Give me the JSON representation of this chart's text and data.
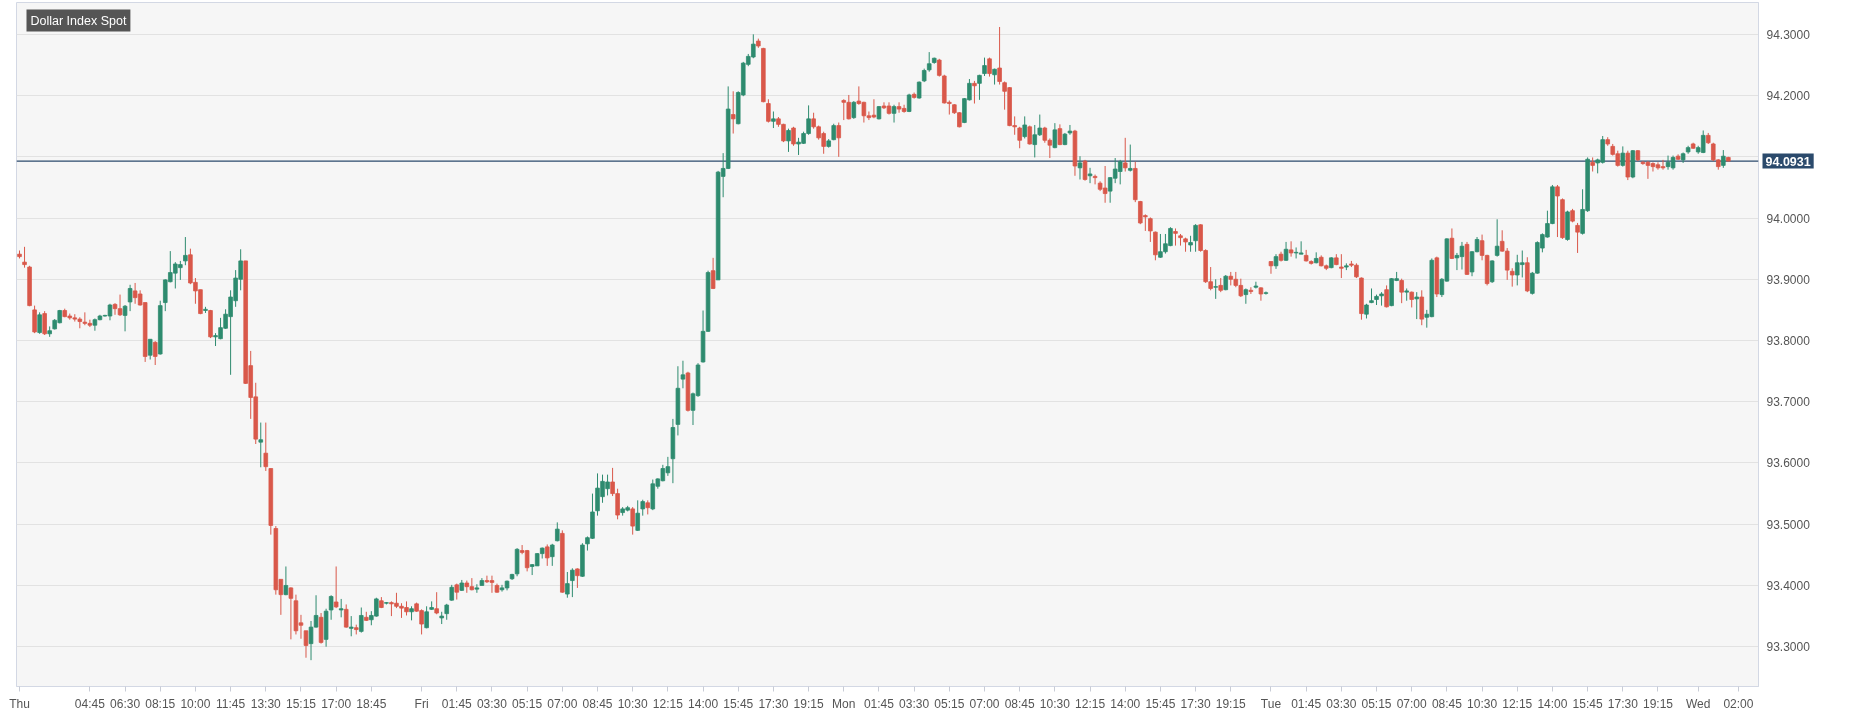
{
  "chart_data": {
    "type": "candlestick",
    "title": "Dollar Index Spot",
    "categories": [
      "Thu",
      null,
      null,
      null,
      null,
      null,
      null,
      null,
      null,
      null,
      null,
      null,
      null,
      null,
      "04:45",
      null,
      null,
      null,
      null,
      null,
      null,
      "06:30",
      null,
      null,
      null,
      null,
      null,
      null,
      "08:15",
      null,
      null,
      null,
      null,
      null,
      null,
      "10:00",
      null,
      null,
      null,
      null,
      null,
      null,
      "11:45",
      null,
      null,
      null,
      null,
      null,
      null,
      "13:30",
      null,
      null,
      null,
      null,
      null,
      null,
      "15:15",
      null,
      null,
      null,
      null,
      null,
      null,
      "17:00",
      null,
      null,
      null,
      null,
      null,
      null,
      "18:45",
      null,
      null,
      null,
      null,
      null,
      null,
      null,
      null,
      null,
      "Fri",
      null,
      null,
      null,
      null,
      null,
      null,
      "01:45",
      null,
      null,
      null,
      null,
      null,
      null,
      "03:30",
      null,
      null,
      null,
      null,
      null,
      null,
      "05:15",
      null,
      null,
      null,
      null,
      null,
      null,
      "07:00",
      null,
      null,
      null,
      null,
      null,
      null,
      "08:45",
      null,
      null,
      null,
      null,
      null,
      null,
      "10:30",
      null,
      null,
      null,
      null,
      null,
      null,
      "12:15",
      null,
      null,
      null,
      null,
      null,
      null,
      "14:00",
      null,
      null,
      null,
      null,
      null,
      null,
      "15:45",
      null,
      null,
      null,
      null,
      null,
      null,
      "17:30",
      null,
      null,
      null,
      null,
      null,
      null,
      "19:15",
      null,
      null,
      null,
      null,
      null,
      null,
      "Mon",
      null,
      null,
      null,
      null,
      null,
      null,
      "01:45",
      null,
      null,
      null,
      null,
      null,
      null,
      "03:30",
      null,
      null,
      null,
      null,
      null,
      null,
      "05:15",
      null,
      null,
      null,
      null,
      null,
      null,
      "07:00",
      null,
      null,
      null,
      null,
      null,
      null,
      "08:45",
      null,
      null,
      null,
      null,
      null,
      null,
      "10:30",
      null,
      null,
      null,
      null,
      null,
      null,
      "12:15",
      null,
      null,
      null,
      null,
      null,
      null,
      "14:00",
      null,
      null,
      null,
      null,
      null,
      null,
      "15:45",
      null,
      null,
      null,
      null,
      null,
      null,
      "17:30",
      null,
      null,
      null,
      null,
      null,
      null,
      "19:15",
      null,
      null,
      null,
      null,
      null,
      null,
      null,
      "Tue",
      null,
      null,
      null,
      null,
      null,
      null,
      "01:45",
      null,
      null,
      null,
      null,
      null,
      null,
      "03:30",
      null,
      null,
      null,
      null,
      null,
      null,
      "05:15",
      null,
      null,
      null,
      null,
      null,
      null,
      "07:00",
      null,
      null,
      null,
      null,
      null,
      null,
      "08:45",
      null,
      null,
      null,
      null,
      null,
      null,
      "10:30",
      null,
      null,
      null,
      null,
      null,
      null,
      "12:15",
      null,
      null,
      null,
      null,
      null,
      null,
      "14:00",
      null,
      null,
      null,
      null,
      null,
      null,
      "15:45",
      null,
      null,
      null,
      null,
      null,
      null,
      "17:30",
      null,
      null,
      null,
      null,
      null,
      null,
      "19:15",
      null,
      null,
      null,
      null,
      null,
      null,
      null,
      "Wed",
      null,
      null,
      null,
      null,
      null,
      null,
      null,
      "02:00"
    ],
    "ohlc": [
      [
        93.941,
        93.947,
        93.934,
        93.937
      ],
      [
        93.928,
        93.953,
        93.919,
        93.924
      ],
      [
        93.92,
        93.922,
        93.856,
        93.857
      ],
      [
        93.85,
        93.857,
        93.812,
        93.814
      ],
      [
        93.813,
        93.846,
        93.811,
        93.842
      ],
      [
        93.844,
        93.848,
        93.809,
        93.811
      ],
      [
        93.811,
        93.823,
        93.806,
        93.816
      ],
      [
        93.819,
        93.835,
        93.818,
        93.833
      ],
      [
        93.829,
        93.85,
        93.828,
        93.849
      ],
      [
        93.849,
        93.852,
        93.838,
        93.839
      ],
      [
        93.84,
        93.844,
        93.834,
        93.837
      ],
      [
        93.837,
        93.843,
        93.831,
        93.835
      ],
      [
        93.835,
        93.838,
        93.82,
        93.831
      ],
      [
        93.83,
        93.846,
        93.825,
        93.828
      ],
      [
        93.828,
        93.834,
        93.822,
        93.825
      ],
      [
        93.825,
        93.836,
        93.816,
        93.834
      ],
      [
        93.834,
        93.842,
        93.833,
        93.84
      ],
      [
        93.84,
        93.842,
        93.839,
        93.841
      ],
      [
        93.84,
        93.86,
        93.833,
        93.858
      ],
      [
        93.859,
        93.861,
        93.842,
        93.852
      ],
      [
        93.852,
        93.875,
        93.84,
        93.842
      ],
      [
        93.841,
        93.858,
        93.815,
        93.856
      ],
      [
        93.863,
        93.891,
        93.848,
        93.885
      ],
      [
        93.881,
        93.894,
        93.86,
        93.87
      ],
      [
        93.876,
        93.882,
        93.857,
        93.858
      ],
      [
        93.862,
        93.862,
        93.765,
        93.774
      ],
      [
        93.776,
        93.802,
        93.769,
        93.802
      ],
      [
        93.797,
        93.799,
        93.76,
        93.774
      ],
      [
        93.778,
        93.865,
        93.777,
        93.857
      ],
      [
        93.862,
        93.9,
        93.848,
        93.899
      ],
      [
        93.896,
        93.946,
        93.895,
        93.911
      ],
      [
        93.91,
        93.928,
        93.885,
        93.925
      ],
      [
        93.919,
        93.93,
        93.899,
        93.924
      ],
      [
        93.93,
        93.969,
        93.923,
        93.939
      ],
      [
        93.94,
        93.95,
        93.892,
        93.894
      ],
      [
        93.895,
        93.902,
        93.86,
        93.881
      ],
      [
        93.883,
        93.883,
        93.843,
        93.844
      ],
      [
        93.849,
        93.855,
        93.845,
        93.851
      ],
      [
        93.849,
        93.85,
        93.804,
        93.806
      ],
      [
        93.806,
        93.812,
        93.791,
        93.808
      ],
      [
        93.803,
        93.837,
        93.802,
        93.821
      ],
      [
        93.82,
        93.851,
        93.819,
        93.843
      ],
      [
        93.839,
        93.882,
        93.744,
        93.871
      ],
      [
        93.865,
        93.915,
        93.855,
        93.902
      ],
      [
        93.9,
        93.949,
        93.882,
        93.93
      ],
      [
        93.93,
        93.93,
        93.729,
        93.73
      ],
      [
        93.759,
        93.783,
        93.672,
        93.707
      ],
      [
        93.708,
        93.731,
        93.631,
        93.639
      ],
      [
        93.634,
        93.666,
        93.593,
        93.638
      ],
      [
        93.616,
        93.666,
        93.587,
        93.594
      ],
      [
        93.591,
        93.591,
        93.483,
        93.498
      ],
      [
        93.493,
        93.497,
        93.385,
        93.393
      ],
      [
        93.41,
        93.41,
        93.352,
        93.385
      ],
      [
        93.385,
        93.431,
        93.384,
        93.4
      ],
      [
        93.396,
        93.397,
        93.312,
        93.379
      ],
      [
        93.375,
        93.385,
        93.32,
        93.326
      ],
      [
        93.339,
        93.352,
        93.313,
        93.335
      ],
      [
        93.326,
        93.326,
        93.282,
        93.302
      ],
      [
        93.305,
        93.342,
        93.278,
        93.332
      ],
      [
        93.332,
        93.384,
        93.331,
        93.351
      ],
      [
        93.348,
        93.355,
        93.305,
        93.307
      ],
      [
        93.312,
        93.362,
        93.3,
        93.358
      ],
      [
        93.36,
        93.384,
        93.344,
        93.382
      ],
      [
        93.373,
        93.431,
        93.363,
        93.365
      ],
      [
        93.36,
        93.378,
        93.348,
        93.362
      ],
      [
        93.361,
        93.369,
        93.331,
        93.332
      ],
      [
        93.33,
        93.35,
        93.317,
        93.332
      ],
      [
        93.331,
        93.336,
        93.32,
        93.328
      ],
      [
        93.325,
        93.364,
        93.323,
        93.351
      ],
      [
        93.348,
        93.357,
        93.342,
        93.343
      ],
      [
        93.344,
        93.358,
        93.335,
        93.351
      ],
      [
        93.35,
        93.38,
        93.349,
        93.378
      ],
      [
        93.375,
        93.381,
        93.363,
        93.364
      ],
      [
        93.371,
        93.373,
        93.369,
        93.372
      ],
      [
        93.372,
        93.374,
        93.35,
        93.37
      ],
      [
        93.371,
        93.388,
        93.363,
        93.366
      ],
      [
        93.366,
        93.371,
        93.347,
        93.363
      ],
      [
        93.364,
        93.374,
        93.351,
        93.357
      ],
      [
        93.357,
        93.366,
        93.343,
        93.362
      ],
      [
        93.37,
        93.372,
        93.357,
        93.358
      ],
      [
        93.359,
        93.361,
        93.32,
        93.337
      ],
      [
        93.331,
        93.366,
        93.33,
        93.357
      ],
      [
        93.361,
        93.374,
        93.36,
        93.364
      ],
      [
        93.362,
        93.389,
        93.353,
        93.355
      ],
      [
        93.347,
        93.357,
        93.337,
        93.35
      ],
      [
        93.354,
        93.37,
        93.344,
        93.368
      ],
      [
        93.376,
        93.401,
        93.375,
        93.397
      ],
      [
        93.401,
        93.403,
        93.377,
        93.389
      ],
      [
        93.392,
        93.409,
        93.391,
        93.404
      ],
      [
        93.404,
        93.408,
        93.388,
        93.398
      ],
      [
        93.398,
        93.412,
        93.392,
        93.393
      ],
      [
        93.394,
        93.402,
        93.388,
        93.396
      ],
      [
        93.4,
        93.412,
        93.4,
        93.408
      ],
      [
        93.408,
        93.416,
        93.404,
        93.406
      ],
      [
        93.408,
        93.416,
        93.388,
        93.405
      ],
      [
        93.4,
        93.403,
        93.388,
        93.389
      ],
      [
        93.393,
        93.401,
        93.39,
        93.396
      ],
      [
        93.396,
        93.408,
        93.392,
        93.407
      ],
      [
        93.411,
        93.419,
        93.409,
        93.418
      ],
      [
        93.419,
        93.461,
        93.415,
        93.459
      ],
      [
        93.457,
        93.466,
        93.451,
        93.454
      ],
      [
        93.457,
        93.458,
        93.423,
        93.429
      ],
      [
        93.431,
        93.435,
        93.417,
        93.434
      ],
      [
        93.432,
        93.453,
        93.432,
        93.452
      ],
      [
        93.452,
        93.462,
        93.444,
        93.461
      ],
      [
        93.463,
        93.467,
        93.432,
        93.445
      ],
      [
        93.447,
        93.468,
        93.432,
        93.466
      ],
      [
        93.473,
        93.503,
        93.472,
        93.492
      ],
      [
        93.485,
        93.49,
        93.388,
        93.389
      ],
      [
        93.386,
        93.422,
        93.38,
        93.403
      ],
      [
        93.408,
        93.428,
        93.381,
        93.425
      ],
      [
        93.427,
        93.428,
        93.396,
        93.416
      ],
      [
        93.415,
        93.469,
        93.414,
        93.466
      ],
      [
        93.468,
        93.48,
        93.457,
        93.478
      ],
      [
        93.477,
        93.55,
        93.476,
        93.52
      ],
      [
        93.522,
        93.583,
        93.514,
        93.559
      ],
      [
        93.545,
        93.581,
        93.535,
        93.57
      ],
      [
        93.558,
        93.581,
        93.547,
        93.569
      ],
      [
        93.569,
        93.592,
        93.546,
        93.55
      ],
      [
        93.55,
        93.558,
        93.508,
        93.515
      ],
      [
        93.519,
        93.528,
        93.514,
        93.525
      ],
      [
        93.523,
        93.53,
        93.521,
        93.527
      ],
      [
        93.525,
        93.528,
        93.483,
        93.497
      ],
      [
        93.49,
        93.539,
        93.489,
        93.518
      ],
      [
        93.525,
        93.54,
        93.514,
        93.537
      ],
      [
        93.535,
        93.539,
        93.516,
        93.527
      ],
      [
        93.525,
        93.573,
        93.523,
        93.566
      ],
      [
        93.562,
        93.575,
        93.558,
        93.574
      ],
      [
        93.571,
        93.597,
        93.57,
        93.591
      ],
      [
        93.584,
        93.61,
        93.579,
        93.594
      ],
      [
        93.607,
        93.672,
        93.567,
        93.658
      ],
      [
        93.663,
        93.758,
        93.645,
        93.722
      ],
      [
        93.737,
        93.767,
        93.722,
        93.744
      ],
      [
        93.747,
        93.749,
        93.684,
        93.686
      ],
      [
        93.686,
        93.715,
        93.662,
        93.713
      ],
      [
        93.71,
        93.763,
        93.708,
        93.76
      ],
      [
        93.765,
        93.849,
        93.764,
        93.815
      ],
      [
        93.815,
        93.914,
        93.814,
        93.911
      ],
      [
        93.914,
        93.935,
        93.884,
        93.885
      ],
      [
        93.899,
        94.077,
        93.899,
        94.075
      ],
      [
        94.068,
        94.106,
        94.034,
        94.081
      ],
      [
        94.081,
        94.215,
        94.08,
        94.178
      ],
      [
        94.169,
        94.207,
        94.138,
        94.162
      ],
      [
        94.154,
        94.207,
        94.153,
        94.205
      ],
      [
        94.201,
        94.255,
        94.199,
        94.253
      ],
      [
        94.251,
        94.268,
        94.248,
        94.264
      ],
      [
        94.263,
        94.3,
        94.261,
        94.284
      ],
      [
        94.289,
        94.293,
        94.278,
        94.281
      ],
      [
        94.277,
        94.278,
        94.189,
        94.19
      ],
      [
        94.187,
        94.194,
        94.156,
        94.158
      ],
      [
        94.158,
        94.174,
        94.147,
        94.162
      ],
      [
        94.162,
        94.165,
        94.149,
        94.153
      ],
      [
        94.153,
        94.154,
        94.124,
        94.126
      ],
      [
        94.126,
        94.146,
        94.108,
        94.143
      ],
      [
        94.147,
        94.149,
        94.118,
        94.121
      ],
      [
        94.121,
        94.131,
        94.103,
        94.124
      ],
      [
        94.122,
        94.141,
        94.121,
        94.138
      ],
      [
        94.138,
        94.184,
        94.136,
        94.162
      ],
      [
        94.162,
        94.172,
        94.146,
        94.149
      ],
      [
        94.149,
        94.151,
        94.128,
        94.131
      ],
      [
        94.138,
        94.141,
        94.105,
        94.117
      ],
      [
        94.117,
        94.129,
        94.115,
        94.126
      ],
      [
        94.128,
        94.154,
        94.127,
        94.151
      ],
      [
        94.151,
        94.156,
        94.1,
        94.131
      ],
      [
        94.192,
        94.194,
        94.16,
        94.189
      ],
      [
        94.189,
        94.201,
        94.161,
        94.162
      ],
      [
        94.164,
        94.191,
        94.162,
        94.189
      ],
      [
        94.191,
        94.215,
        94.185,
        94.187
      ],
      [
        94.189,
        94.19,
        94.156,
        94.167
      ],
      [
        94.167,
        94.174,
        94.16,
        94.164
      ],
      [
        94.168,
        94.194,
        94.163,
        94.165
      ],
      [
        94.162,
        94.183,
        94.161,
        94.182
      ],
      [
        94.183,
        94.189,
        94.178,
        94.18
      ],
      [
        94.183,
        94.189,
        94.169,
        94.171
      ],
      [
        94.171,
        94.185,
        94.156,
        94.182
      ],
      [
        94.182,
        94.189,
        94.172,
        94.178
      ],
      [
        94.179,
        94.185,
        94.172,
        94.174
      ],
      [
        94.174,
        94.203,
        94.173,
        94.201
      ],
      [
        94.202,
        94.205,
        94.195,
        94.197
      ],
      [
        94.196,
        94.223,
        94.195,
        94.222
      ],
      [
        94.224,
        94.244,
        94.222,
        94.241
      ],
      [
        94.242,
        94.271,
        94.239,
        94.252
      ],
      [
        94.254,
        94.262,
        94.252,
        94.261
      ],
      [
        94.258,
        94.26,
        94.231,
        94.233
      ],
      [
        94.232,
        94.234,
        94.187,
        94.188
      ],
      [
        94.189,
        94.192,
        94.169,
        94.187
      ],
      [
        94.185,
        94.186,
        94.17,
        94.172
      ],
      [
        94.172,
        94.173,
        94.148,
        94.149
      ],
      [
        94.156,
        94.196,
        94.155,
        94.195
      ],
      [
        94.193,
        94.227,
        94.192,
        94.22
      ],
      [
        94.22,
        94.224,
        94.187,
        94.216
      ],
      [
        94.22,
        94.234,
        94.193,
        94.233
      ],
      [
        94.236,
        94.262,
        94.232,
        94.249
      ],
      [
        94.26,
        94.262,
        94.231,
        94.236
      ],
      [
        94.234,
        94.244,
        94.218,
        94.243
      ],
      [
        94.245,
        94.312,
        94.218,
        94.223
      ],
      [
        94.221,
        94.223,
        94.177,
        94.207
      ],
      [
        94.213,
        94.214,
        94.15,
        94.151
      ],
      [
        94.151,
        94.166,
        94.136,
        94.149
      ],
      [
        94.147,
        94.149,
        94.114,
        94.127
      ],
      [
        94.133,
        94.166,
        94.13,
        94.152
      ],
      [
        94.149,
        94.151,
        94.12,
        94.121
      ],
      [
        94.12,
        94.152,
        94.099,
        94.136
      ],
      [
        94.136,
        94.169,
        94.134,
        94.147
      ],
      [
        94.147,
        94.149,
        94.123,
        94.127
      ],
      [
        94.127,
        94.13,
        94.098,
        94.119
      ],
      [
        94.115,
        94.155,
        94.114,
        94.144
      ],
      [
        94.146,
        94.153,
        94.119,
        94.12
      ],
      [
        94.12,
        94.139,
        94.119,
        94.137
      ],
      [
        94.139,
        94.152,
        94.136,
        94.142
      ],
      [
        94.142,
        94.144,
        94.069,
        94.085
      ],
      [
        94.082,
        94.101,
        94.063,
        94.09
      ],
      [
        94.093,
        94.095,
        94.061,
        94.063
      ],
      [
        94.069,
        94.082,
        94.057,
        94.072
      ],
      [
        94.068,
        94.071,
        94.055,
        94.066
      ],
      [
        94.057,
        94.06,
        94.044,
        94.047
      ],
      [
        94.049,
        94.085,
        94.025,
        94.04
      ],
      [
        94.044,
        94.067,
        94.025,
        94.066
      ],
      [
        94.065,
        94.098,
        94.057,
        94.08
      ],
      [
        94.076,
        94.095,
        94.055,
        94.092
      ],
      [
        94.09,
        94.131,
        94.076,
        94.082
      ],
      [
        94.078,
        94.12,
        94.076,
        94.081
      ],
      [
        94.081,
        94.092,
        94.026,
        94.03
      ],
      [
        94.027,
        94.028,
        93.99,
        93.992
      ],
      [
        94.004,
        94.006,
        93.979,
        94.002
      ],
      [
        93.999,
        94.001,
        93.961,
        93.979
      ],
      [
        93.977,
        93.978,
        93.931,
        93.94
      ],
      [
        93.936,
        93.974,
        93.935,
        93.945
      ],
      [
        93.945,
        93.974,
        93.942,
        93.958
      ],
      [
        93.955,
        93.985,
        93.954,
        93.983
      ],
      [
        93.978,
        93.983,
        93.955,
        93.975
      ],
      [
        93.971,
        93.974,
        93.955,
        93.968
      ],
      [
        93.966,
        93.968,
        93.945,
        93.961
      ],
      [
        93.956,
        93.971,
        93.945,
        93.96
      ],
      [
        93.963,
        93.99,
        93.945,
        93.988
      ],
      [
        93.989,
        93.99,
        93.945,
        93.947
      ],
      [
        93.947,
        93.949,
        93.894,
        93.896
      ],
      [
        93.896,
        93.92,
        93.882,
        93.885
      ],
      [
        93.887,
        93.9,
        93.868,
        93.888
      ],
      [
        93.89,
        93.902,
        93.879,
        93.882
      ],
      [
        93.883,
        93.907,
        93.882,
        93.905
      ],
      [
        93.905,
        93.912,
        93.89,
        93.9
      ],
      [
        93.9,
        93.912,
        93.887,
        93.89
      ],
      [
        93.89,
        93.901,
        93.871,
        93.873
      ],
      [
        93.875,
        93.885,
        93.86,
        93.883
      ],
      [
        93.882,
        93.887,
        93.876,
        93.88
      ],
      [
        93.887,
        93.896,
        93.885,
        93.889
      ],
      [
        93.886,
        93.887,
        93.865,
        93.876
      ],
      [
        93.877,
        93.88,
        93.875,
        93.878
      ],
      [
        93.929,
        93.929,
        93.909,
        93.922
      ],
      [
        93.922,
        93.941,
        93.917,
        93.937
      ],
      [
        93.941,
        93.945,
        93.929,
        93.931
      ],
      [
        93.931,
        93.961,
        93.93,
        93.949
      ],
      [
        93.948,
        93.962,
        93.937,
        93.943
      ],
      [
        93.943,
        93.952,
        93.934,
        93.944
      ],
      [
        93.941,
        93.962,
        93.941,
        93.943
      ],
      [
        93.939,
        93.948,
        93.929,
        93.93
      ],
      [
        93.929,
        93.931,
        93.924,
        93.926
      ],
      [
        93.927,
        93.944,
        93.926,
        93.934
      ],
      [
        93.936,
        93.939,
        93.921,
        93.922
      ],
      [
        93.922,
        93.924,
        93.915,
        93.918
      ],
      [
        93.919,
        93.936,
        93.918,
        93.935
      ],
      [
        93.935,
        93.941,
        93.923,
        93.924
      ],
      [
        93.92,
        93.941,
        93.902,
        93.918
      ],
      [
        93.92,
        93.926,
        93.915,
        93.922
      ],
      [
        93.925,
        93.93,
        93.92,
        93.923
      ],
      [
        93.923,
        93.926,
        93.902,
        93.904
      ],
      [
        93.902,
        93.903,
        93.834,
        93.844
      ],
      [
        93.843,
        93.86,
        93.836,
        93.858
      ],
      [
        93.862,
        93.885,
        93.861,
        93.865
      ],
      [
        93.867,
        93.875,
        93.858,
        93.872
      ],
      [
        93.873,
        93.879,
        93.857,
        93.876
      ],
      [
        93.883,
        93.89,
        93.854,
        93.855
      ],
      [
        93.857,
        93.902,
        93.856,
        93.901
      ],
      [
        93.898,
        93.912,
        93.897,
        93.901
      ],
      [
        93.898,
        93.901,
        93.861,
        93.879
      ],
      [
        93.879,
        93.885,
        93.865,
        93.881
      ],
      [
        93.879,
        93.88,
        93.854,
        93.867
      ],
      [
        93.868,
        93.879,
        93.835,
        93.871
      ],
      [
        93.871,
        93.882,
        93.825,
        93.835
      ],
      [
        93.838,
        93.85,
        93.821,
        93.843
      ],
      [
        93.839,
        93.934,
        93.838,
        93.931
      ],
      [
        93.935,
        93.937,
        93.871,
        93.876
      ],
      [
        93.875,
        93.902,
        93.871,
        93.9
      ],
      [
        93.897,
        93.967,
        93.896,
        93.966
      ],
      [
        93.967,
        93.983,
        93.933,
        93.934
      ],
      [
        93.935,
        93.943,
        93.915,
        93.939
      ],
      [
        93.937,
        93.961,
        93.916,
        93.954
      ],
      [
        93.957,
        93.961,
        93.907,
        93.908
      ],
      [
        93.912,
        93.946,
        93.905,
        93.945
      ],
      [
        93.945,
        93.969,
        93.944,
        93.965
      ],
      [
        93.963,
        93.973,
        93.931,
        93.939
      ],
      [
        93.939,
        93.94,
        93.89,
        93.893
      ],
      [
        93.896,
        93.931,
        93.894,
        93.93
      ],
      [
        93.939,
        93.998,
        93.937,
        93.954
      ],
      [
        93.962,
        93.98,
        93.945,
        93.946
      ],
      [
        93.946,
        93.951,
        93.899,
        93.915
      ],
      [
        93.913,
        93.918,
        93.888,
        93.907
      ],
      [
        93.907,
        93.94,
        93.89,
        93.927
      ],
      [
        93.924,
        93.947,
        93.903,
        93.927
      ],
      [
        93.927,
        93.936,
        93.879,
        93.881
      ],
      [
        93.877,
        93.912,
        93.875,
        93.91
      ],
      [
        93.91,
        93.962,
        93.909,
        93.96
      ],
      [
        93.951,
        93.975,
        93.944,
        93.973
      ],
      [
        93.969,
        94.012,
        93.968,
        93.991
      ],
      [
        93.991,
        94.054,
        93.99,
        94.051
      ],
      [
        94.051,
        94.054,
        93.969,
        94.036
      ],
      [
        94.03,
        94.032,
        93.966,
        93.968
      ],
      [
        93.965,
        94.012,
        93.963,
        94.01
      ],
      [
        94.012,
        94.015,
        93.993,
        93.995
      ],
      [
        93.988,
        93.992,
        93.943,
        93.977
      ],
      [
        93.975,
        94.047,
        93.973,
        94.014
      ],
      [
        94.012,
        94.099,
        94.01,
        94.096
      ],
      [
        94.091,
        94.099,
        94.076,
        94.086
      ],
      [
        94.09,
        94.097,
        94.073,
        94.095
      ],
      [
        94.091,
        94.134,
        94.089,
        94.128
      ],
      [
        94.128,
        94.132,
        94.118,
        94.121
      ],
      [
        94.117,
        94.121,
        94.102,
        94.104
      ],
      [
        94.105,
        94.11,
        94.084,
        94.086
      ],
      [
        94.086,
        94.117,
        94.084,
        94.106
      ],
      [
        94.106,
        94.11,
        94.062,
        94.067
      ],
      [
        94.067,
        94.111,
        94.065,
        94.11
      ],
      [
        94.11,
        94.111,
        94.093,
        94.095
      ],
      [
        94.091,
        94.093,
        94.087,
        94.089
      ],
      [
        94.091,
        94.093,
        94.064,
        94.086
      ],
      [
        94.089,
        94.091,
        94.076,
        94.084
      ],
      [
        94.087,
        94.091,
        94.079,
        94.082
      ],
      [
        94.084,
        94.095,
        94.079,
        94.082
      ],
      [
        94.084,
        94.102,
        94.079,
        94.091
      ],
      [
        94.082,
        94.102,
        94.079,
        94.099
      ],
      [
        94.101,
        94.104,
        94.095,
        94.096
      ],
      [
        94.095,
        94.107,
        94.09,
        94.105
      ],
      [
        94.108,
        94.118,
        94.105,
        94.115
      ],
      [
        94.121,
        94.123,
        94.113,
        94.114
      ],
      [
        94.108,
        94.118,
        94.105,
        94.115
      ],
      [
        94.107,
        94.143,
        94.106,
        94.135
      ],
      [
        94.135,
        94.139,
        94.121,
        94.123
      ],
      [
        94.121,
        94.123,
        94.093,
        94.095
      ],
      [
        94.095,
        94.096,
        94.079,
        94.084
      ],
      [
        94.086,
        94.111,
        94.082,
        94.101
      ],
      [
        94.099,
        94.1,
        94.093,
        94.093
      ],
      null,
      null
    ],
    "colors": [
      "#d9584a",
      "#d9584a",
      "#d9584a",
      "#d9584a",
      "#2e8b6f",
      "#d9584a",
      "#2e8b6f",
      "#2e8b6f",
      "#2e8b6f",
      "#d9584a",
      "#d9584a",
      "#d9584a",
      "#d9584a",
      "#d9584a",
      "#d9584a",
      "#2e8b6f",
      "#2e8b6f",
      "#2e8b6f",
      "#2e8b6f",
      "#d9584a",
      "#d9584a",
      "#2e8b6f",
      "#2e8b6f",
      "#d9584a",
      "#d9584a",
      "#d9584a",
      "#2e8b6f",
      "#d9584a",
      "#2e8b6f",
      "#2e8b6f",
      "#2e8b6f",
      "#2e8b6f",
      "#2e8b6f",
      "#2e8b6f",
      "#d9584a",
      "#d9584a",
      "#d9584a",
      "#2e8b6f",
      "#d9584a",
      "#2e8b6f",
      "#2e8b6f",
      "#2e8b6f",
      "#2e8b6f",
      "#2e8b6f",
      "#2e8b6f",
      "#d9584a",
      "#d9584a",
      "#d9584a",
      "#2e8b6f",
      "#d9584a",
      "#d9584a",
      "#d9584a",
      "#d9584a",
      "#2e8b6f",
      "#d9584a",
      "#d9584a",
      "#d9584a",
      "#d9584a",
      "#2e8b6f",
      "#2e8b6f",
      "#d9584a",
      "#2e8b6f",
      "#2e8b6f",
      "#d9584a",
      "#2e8b6f",
      "#d9584a",
      "#2e8b6f",
      "#d9584a",
      "#2e8b6f",
      "#d9584a",
      "#2e8b6f",
      "#2e8b6f",
      "#d9584a",
      "#2e8b6f",
      "#d9584a",
      "#d9584a",
      "#d9584a",
      "#d9584a",
      "#2e8b6f",
      "#d9584a",
      "#d9584a",
      "#2e8b6f",
      "#2e8b6f",
      "#d9584a",
      "#2e8b6f",
      "#2e8b6f",
      "#2e8b6f",
      "#d9584a",
      "#2e8b6f",
      "#d9584a",
      "#d9584a",
      "#2e8b6f",
      "#2e8b6f",
      "#d9584a",
      "#d9584a",
      "#d9584a",
      "#2e8b6f",
      "#2e8b6f",
      "#2e8b6f",
      "#2e8b6f",
      "#d9584a",
      "#d9584a",
      "#2e8b6f",
      "#2e8b6f",
      "#2e8b6f",
      "#d9584a",
      "#2e8b6f",
      "#2e8b6f",
      "#d9584a",
      "#2e8b6f",
      "#2e8b6f",
      "#d9584a",
      "#2e8b6f",
      "#2e8b6f",
      "#2e8b6f",
      "#2e8b6f",
      "#2e8b6f",
      "#2e8b6f",
      "#d9584a",
      "#d9584a",
      "#2e8b6f",
      "#2e8b6f",
      "#d9584a",
      "#2e8b6f",
      "#2e8b6f",
      "#d9584a",
      "#2e8b6f",
      "#2e8b6f",
      "#2e8b6f",
      "#2e8b6f",
      "#2e8b6f",
      "#2e8b6f",
      "#2e8b6f",
      "#d9584a",
      "#2e8b6f",
      "#2e8b6f",
      "#2e8b6f",
      "#2e8b6f",
      "#d9584a",
      "#2e8b6f",
      "#2e8b6f",
      "#2e8b6f",
      "#d9584a",
      "#2e8b6f",
      "#2e8b6f",
      "#2e8b6f",
      "#2e8b6f",
      "#d9584a",
      "#d9584a",
      "#d9584a",
      "#2e8b6f",
      "#d9584a",
      "#d9584a",
      "#2e8b6f",
      "#d9584a",
      "#2e8b6f",
      "#2e8b6f",
      "#2e8b6f",
      "#d9584a",
      "#d9584a",
      "#d9584a",
      "#2e8b6f",
      "#2e8b6f",
      "#d9584a",
      "#d9584a",
      "#d9584a",
      "#2e8b6f",
      "#d9584a",
      "#d9584a",
      "#d9584a",
      "#d9584a",
      "#2e8b6f",
      "#d9584a",
      "#d9584a",
      "#2e8b6f",
      "#d9584a",
      "#d9584a",
      "#2e8b6f",
      "#d9584a",
      "#2e8b6f",
      "#2e8b6f",
      "#2e8b6f",
      "#2e8b6f",
      "#d9584a",
      "#d9584a",
      "#d9584a",
      "#d9584a",
      "#d9584a",
      "#2e8b6f",
      "#2e8b6f",
      "#d9584a",
      "#2e8b6f",
      "#2e8b6f",
      "#d9584a",
      "#2e8b6f",
      "#d9584a",
      "#d9584a",
      "#d9584a",
      "#d9584a",
      "#d9584a",
      "#2e8b6f",
      "#d9584a",
      "#2e8b6f",
      "#2e8b6f",
      "#d9584a",
      "#d9584a",
      "#2e8b6f",
      "#d9584a",
      "#2e8b6f",
      "#2e8b6f",
      "#d9584a",
      "#2e8b6f",
      "#d9584a",
      "#2e8b6f",
      "#d9584a",
      "#d9584a",
      "#d9584a",
      "#2e8b6f",
      "#2e8b6f",
      "#2e8b6f",
      "#d9584a",
      "#2e8b6f",
      "#d9584a",
      "#d9584a",
      "#d9584a",
      "#d9584a",
      "#d9584a",
      "#2e8b6f",
      "#2e8b6f",
      "#2e8b6f",
      "#d9584a",
      "#d9584a",
      "#d9584a",
      "#2e8b6f",
      "#2e8b6f",
      "#d9584a",
      "#d9584a",
      "#d9584a",
      "#2e8b6f",
      "#d9584a",
      "#2e8b6f",
      "#d9584a",
      "#d9584a",
      "#d9584a",
      "#2e8b6f",
      "#d9584a",
      "#2e8b6f",
      "#d9584a",
      "#2e8b6f",
      "#d9584a",
      "#2e8b6f",
      "#d9584a",
      "#2e8b6f",
      "#d9584a",
      "#2e8b6f",
      "#2e8b6f",
      "#d9584a",
      "#d9584a",
      "#2e8b6f",
      "#d9584a",
      "#d9584a",
      "#2e8b6f",
      "#d9584a",
      "#d9584a",
      "#2e8b6f",
      "#d9584a",
      "#d9584a",
      "#d9584a",
      "#2e8b6f",
      "#2e8b6f",
      "#2e8b6f",
      "#2e8b6f",
      "#d9584a",
      "#2e8b6f",
      "#2e8b6f",
      "#d9584a",
      "#2e8b6f",
      "#d9584a",
      "#2e8b6f",
      "#d9584a",
      "#2e8b6f",
      "#2e8b6f",
      "#d9584a",
      "#2e8b6f",
      "#2e8b6f",
      "#d9584a",
      "#2e8b6f",
      "#2e8b6f",
      "#d9584a",
      "#2e8b6f",
      "#2e8b6f",
      "#d9584a",
      "#d9584a",
      "#2e8b6f",
      "#2e8b6f",
      "#d9584a",
      "#d9584a",
      "#d9584a",
      "#2e8b6f",
      "#2e8b6f",
      "#d9584a",
      "#2e8b6f",
      "#2e8b6f",
      "#2e8b6f",
      "#2e8b6f",
      "#2e8b6f",
      "#d9584a",
      "#d9584a",
      "#2e8b6f",
      "#d9584a",
      "#d9584a",
      "#2e8b6f",
      "#2e8b6f",
      "#d9584a",
      "#2e8b6f",
      "#2e8b6f",
      "#d9584a",
      "#d9584a",
      "#d9584a",
      "#2e8b6f",
      "#d9584a",
      "#2e8b6f",
      "#d9584a",
      "#d9584a",
      "#d9584a",
      "#d9584a",
      "#d9584a",
      "#d9584a",
      "#2e8b6f",
      "#2e8b6f",
      "#d9584a",
      "#2e8b6f",
      "#2e8b6f",
      "#d9584a",
      "#2e8b6f",
      "#2e8b6f",
      "#d9584a",
      "#d9584a",
      "#d9584a",
      "#2e8b6f",
      "#d9584a",
      null,
      null
    ],
    "ylim": [
      93.235,
      94.352
    ],
    "yticks": [
      {
        "value": 93.3,
        "label": "93.3000"
      },
      {
        "value": 93.4,
        "label": "93.4000"
      },
      {
        "value": 93.5,
        "label": "93.5000"
      },
      {
        "value": 93.6,
        "label": "93.6000"
      },
      {
        "value": 93.7,
        "label": "93.7000"
      },
      {
        "value": 93.8,
        "label": "93.8000"
      },
      {
        "value": 93.9,
        "label": "93.9000"
      },
      {
        "value": 94.0,
        "label": "94.0000"
      },
      {
        "value": 94.1,
        "label": null
      },
      {
        "value": 94.2,
        "label": "94.2000"
      },
      {
        "value": 94.3,
        "label": "94.3000"
      }
    ],
    "grid": "y",
    "ref_lines": [
      {
        "axis": "y",
        "value": 94.0931,
        "label": "94.0931",
        "color": "#2b4a6c"
      }
    ]
  }
}
